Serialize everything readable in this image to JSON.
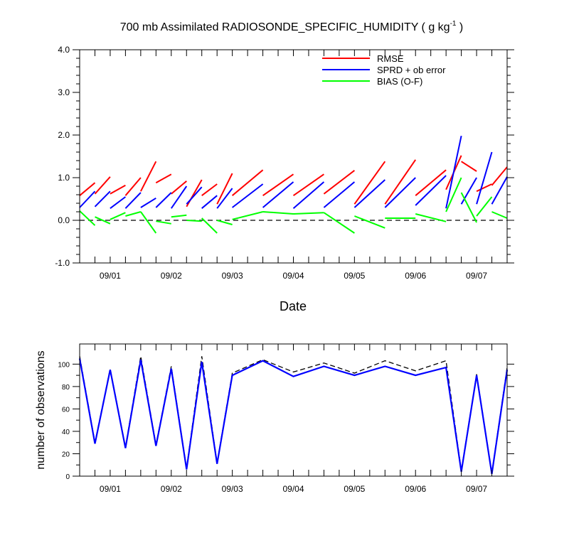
{
  "colors": {
    "rmse": "#ff0000",
    "sprd": "#0000ff",
    "bias": "#00ff00",
    "nobs_used": "#0000ff",
    "nobs_poss": "#000000"
  },
  "chart_data": [
    {
      "type": "line",
      "title_main": "700 mb Assimilated RADIOSONDE_SPECIFIC_HUMIDITY ( g kg",
      "title_sup": "-1",
      "title_end": " )",
      "xlabel": "Date",
      "ylabel": "",
      "ylim": [
        -1.0,
        4.0
      ],
      "xlim": [
        0,
        7
      ],
      "y_ticks": [
        -1.0,
        0.0,
        1.0,
        2.0,
        3.0,
        4.0
      ],
      "y_tick_labels": [
        "-1.0",
        "0.0",
        "1.0",
        "2.0",
        "3.0",
        "4.0"
      ],
      "x_ticks": [
        0.5,
        1.5,
        2.5,
        3.5,
        4.5,
        5.5,
        6.5
      ],
      "x_tick_labels": [
        "09/01",
        "09/02",
        "09/03",
        "09/04",
        "09/05",
        "09/06",
        "09/07"
      ],
      "legend": [
        "RMSE",
        "SPRD + ob error",
        "BIAS (O-F)"
      ],
      "legend_position": "top-right",
      "zero_line": 0.0,
      "series": [
        {
          "name": "RMSE",
          "color_key": "rmse",
          "segments": [
            [
              [
                0.0,
                0.58
              ],
              [
                0.25,
                0.88
              ]
            ],
            [
              [
                0.25,
                0.62
              ],
              [
                0.5,
                1.02
              ]
            ],
            [
              [
                0.5,
                0.62
              ],
              [
                0.75,
                0.82
              ]
            ],
            [
              [
                0.75,
                0.58
              ],
              [
                1.0,
                1.0
              ]
            ],
            [
              [
                1.0,
                0.68
              ],
              [
                1.25,
                1.38
              ]
            ],
            [
              [
                1.25,
                0.88
              ],
              [
                1.5,
                1.08
              ]
            ],
            [
              [
                1.5,
                0.62
              ],
              [
                1.75,
                0.92
              ]
            ],
            [
              [
                1.75,
                0.32
              ],
              [
                2.0,
                0.95
              ]
            ],
            [
              [
                2.0,
                0.58
              ],
              [
                2.25,
                0.85
              ]
            ],
            [
              [
                2.25,
                0.38
              ],
              [
                2.5,
                1.1
              ]
            ],
            [
              [
                2.5,
                0.58
              ],
              [
                3.0,
                1.18
              ]
            ],
            [
              [
                3.0,
                0.58
              ],
              [
                3.5,
                1.08
              ]
            ],
            [
              [
                3.5,
                0.58
              ],
              [
                4.0,
                1.08
              ]
            ],
            [
              [
                4.0,
                0.62
              ],
              [
                4.5,
                1.17
              ]
            ],
            [
              [
                4.5,
                0.38
              ],
              [
                5.0,
                1.38
              ]
            ],
            [
              [
                5.0,
                0.38
              ],
              [
                5.5,
                1.42
              ]
            ],
            [
              [
                5.5,
                0.58
              ],
              [
                6.0,
                1.18
              ]
            ],
            [
              [
                6.0,
                0.72
              ],
              [
                6.25,
                1.52
              ]
            ],
            [
              [
                6.25,
                1.38
              ],
              [
                6.5,
                1.15
              ]
            ],
            [
              [
                6.5,
                0.68
              ],
              [
                6.75,
                0.85
              ]
            ],
            [
              [
                6.75,
                0.82
              ],
              [
                7.0,
                1.25
              ]
            ]
          ]
        },
        {
          "name": "SPRD + ob error",
          "color_key": "sprd",
          "segments": [
            [
              [
                0.0,
                0.3
              ],
              [
                0.25,
                0.68
              ]
            ],
            [
              [
                0.25,
                0.32
              ],
              [
                0.5,
                0.68
              ]
            ],
            [
              [
                0.5,
                0.28
              ],
              [
                0.75,
                0.55
              ]
            ],
            [
              [
                0.75,
                0.28
              ],
              [
                1.0,
                0.65
              ]
            ],
            [
              [
                1.0,
                0.3
              ],
              [
                1.25,
                0.52
              ]
            ],
            [
              [
                1.25,
                0.3
              ],
              [
                1.5,
                0.65
              ]
            ],
            [
              [
                1.5,
                0.28
              ],
              [
                1.75,
                0.8
              ]
            ],
            [
              [
                1.75,
                0.38
              ],
              [
                2.0,
                0.78
              ]
            ],
            [
              [
                2.0,
                0.28
              ],
              [
                2.25,
                0.58
              ]
            ],
            [
              [
                2.25,
                0.28
              ],
              [
                2.5,
                0.75
              ]
            ],
            [
              [
                2.5,
                0.3
              ],
              [
                3.0,
                0.85
              ]
            ],
            [
              [
                3.0,
                0.3
              ],
              [
                3.5,
                0.9
              ]
            ],
            [
              [
                3.5,
                0.28
              ],
              [
                4.0,
                0.9
              ]
            ],
            [
              [
                4.0,
                0.3
              ],
              [
                4.5,
                0.9
              ]
            ],
            [
              [
                4.5,
                0.3
              ],
              [
                5.0,
                0.95
              ]
            ],
            [
              [
                5.0,
                0.3
              ],
              [
                5.5,
                1.0
              ]
            ],
            [
              [
                5.5,
                0.35
              ],
              [
                6.0,
                1.05
              ]
            ],
            [
              [
                6.0,
                0.28
              ],
              [
                6.25,
                1.98
              ]
            ],
            [
              [
                6.25,
                0.38
              ],
              [
                6.5,
                1.0
              ]
            ],
            [
              [
                6.5,
                0.38
              ],
              [
                6.75,
                1.6
              ]
            ],
            [
              [
                6.75,
                0.38
              ],
              [
                7.0,
                1.02
              ]
            ]
          ]
        },
        {
          "name": "BIAS (O-F)",
          "color_key": "bias",
          "segments": [
            [
              [
                0.0,
                0.22
              ],
              [
                0.25,
                -0.12
              ]
            ],
            [
              [
                0.25,
                0.08
              ],
              [
                0.5,
                -0.08
              ]
            ],
            [
              [
                0.5,
                0.02
              ],
              [
                0.75,
                0.18
              ]
            ],
            [
              [
                0.75,
                0.1
              ],
              [
                1.0,
                0.2
              ]
            ],
            [
              [
                1.0,
                0.2
              ],
              [
                1.25,
                -0.3
              ]
            ],
            [
              [
                1.25,
                -0.02
              ],
              [
                1.5,
                -0.08
              ]
            ],
            [
              [
                1.5,
                0.08
              ],
              [
                1.75,
                0.12
              ]
            ],
            [
              [
                1.75,
                0.0
              ],
              [
                2.0,
                -0.02
              ]
            ],
            [
              [
                2.0,
                0.05
              ],
              [
                2.25,
                -0.3
              ]
            ],
            [
              [
                2.25,
                0.0
              ],
              [
                2.5,
                -0.1
              ]
            ],
            [
              [
                2.5,
                0.02
              ],
              [
                3.0,
                0.2
              ]
            ],
            [
              [
                3.0,
                0.2
              ],
              [
                3.5,
                0.15
              ]
            ],
            [
              [
                3.5,
                0.15
              ],
              [
                4.0,
                0.18
              ]
            ],
            [
              [
                4.0,
                0.18
              ],
              [
                4.5,
                -0.3
              ]
            ],
            [
              [
                4.5,
                0.1
              ],
              [
                5.0,
                -0.18
              ]
            ],
            [
              [
                5.0,
                0.05
              ],
              [
                5.5,
                0.05
              ]
            ],
            [
              [
                5.5,
                0.15
              ],
              [
                6.0,
                -0.03
              ]
            ],
            [
              [
                6.0,
                0.2
              ],
              [
                6.25,
                1.0
              ]
            ],
            [
              [
                6.25,
                0.65
              ],
              [
                6.5,
                -0.05
              ]
            ],
            [
              [
                6.5,
                0.1
              ],
              [
                6.75,
                0.55
              ]
            ],
            [
              [
                6.75,
                0.2
              ],
              [
                7.0,
                0.05
              ]
            ]
          ]
        }
      ]
    },
    {
      "type": "line",
      "title": "",
      "xlabel": "",
      "ylabel": "number of observations",
      "ylim": [
        0,
        118
      ],
      "xlim": [
        0,
        7
      ],
      "y_ticks": [
        0,
        20,
        40,
        60,
        80,
        100
      ],
      "y_tick_labels": [
        "0",
        "20",
        "40",
        "60",
        "80",
        "100"
      ],
      "x_ticks": [
        0.5,
        1.5,
        2.5,
        3.5,
        4.5,
        5.5,
        6.5
      ],
      "x_tick_labels": [
        "09/01",
        "09/02",
        "09/03",
        "09/04",
        "09/05",
        "09/06",
        "09/07"
      ],
      "series": [
        {
          "name": "obs possible",
          "color_key": "nobs_poss",
          "dashed": true,
          "x": [
            0.0,
            0.25,
            0.5,
            0.75,
            1.0,
            1.25,
            1.5,
            1.75,
            2.0,
            2.25,
            2.5,
            3.0,
            3.5,
            4.0,
            4.5,
            5.0,
            5.5,
            6.0,
            6.25,
            6.5,
            6.75,
            7.0
          ],
          "values": [
            107,
            30,
            96,
            26,
            107,
            28,
            98,
            7,
            107,
            12,
            92,
            104,
            93,
            101,
            92,
            103,
            94,
            103,
            5,
            91,
            3,
            97
          ]
        },
        {
          "name": "obs used",
          "color_key": "nobs_used",
          "dashed": false,
          "x": [
            0.0,
            0.25,
            0.5,
            0.75,
            1.0,
            1.25,
            1.5,
            1.75,
            2.0,
            2.25,
            2.5,
            3.0,
            3.5,
            4.0,
            4.5,
            5.0,
            5.5,
            6.0,
            6.25,
            6.5,
            6.75,
            7.0
          ],
          "values": [
            105,
            29,
            95,
            25,
            104,
            27,
            96,
            6,
            102,
            11,
            90,
            103,
            89,
            98,
            90,
            98,
            90,
            97,
            4,
            90,
            2,
            95
          ]
        }
      ]
    }
  ]
}
